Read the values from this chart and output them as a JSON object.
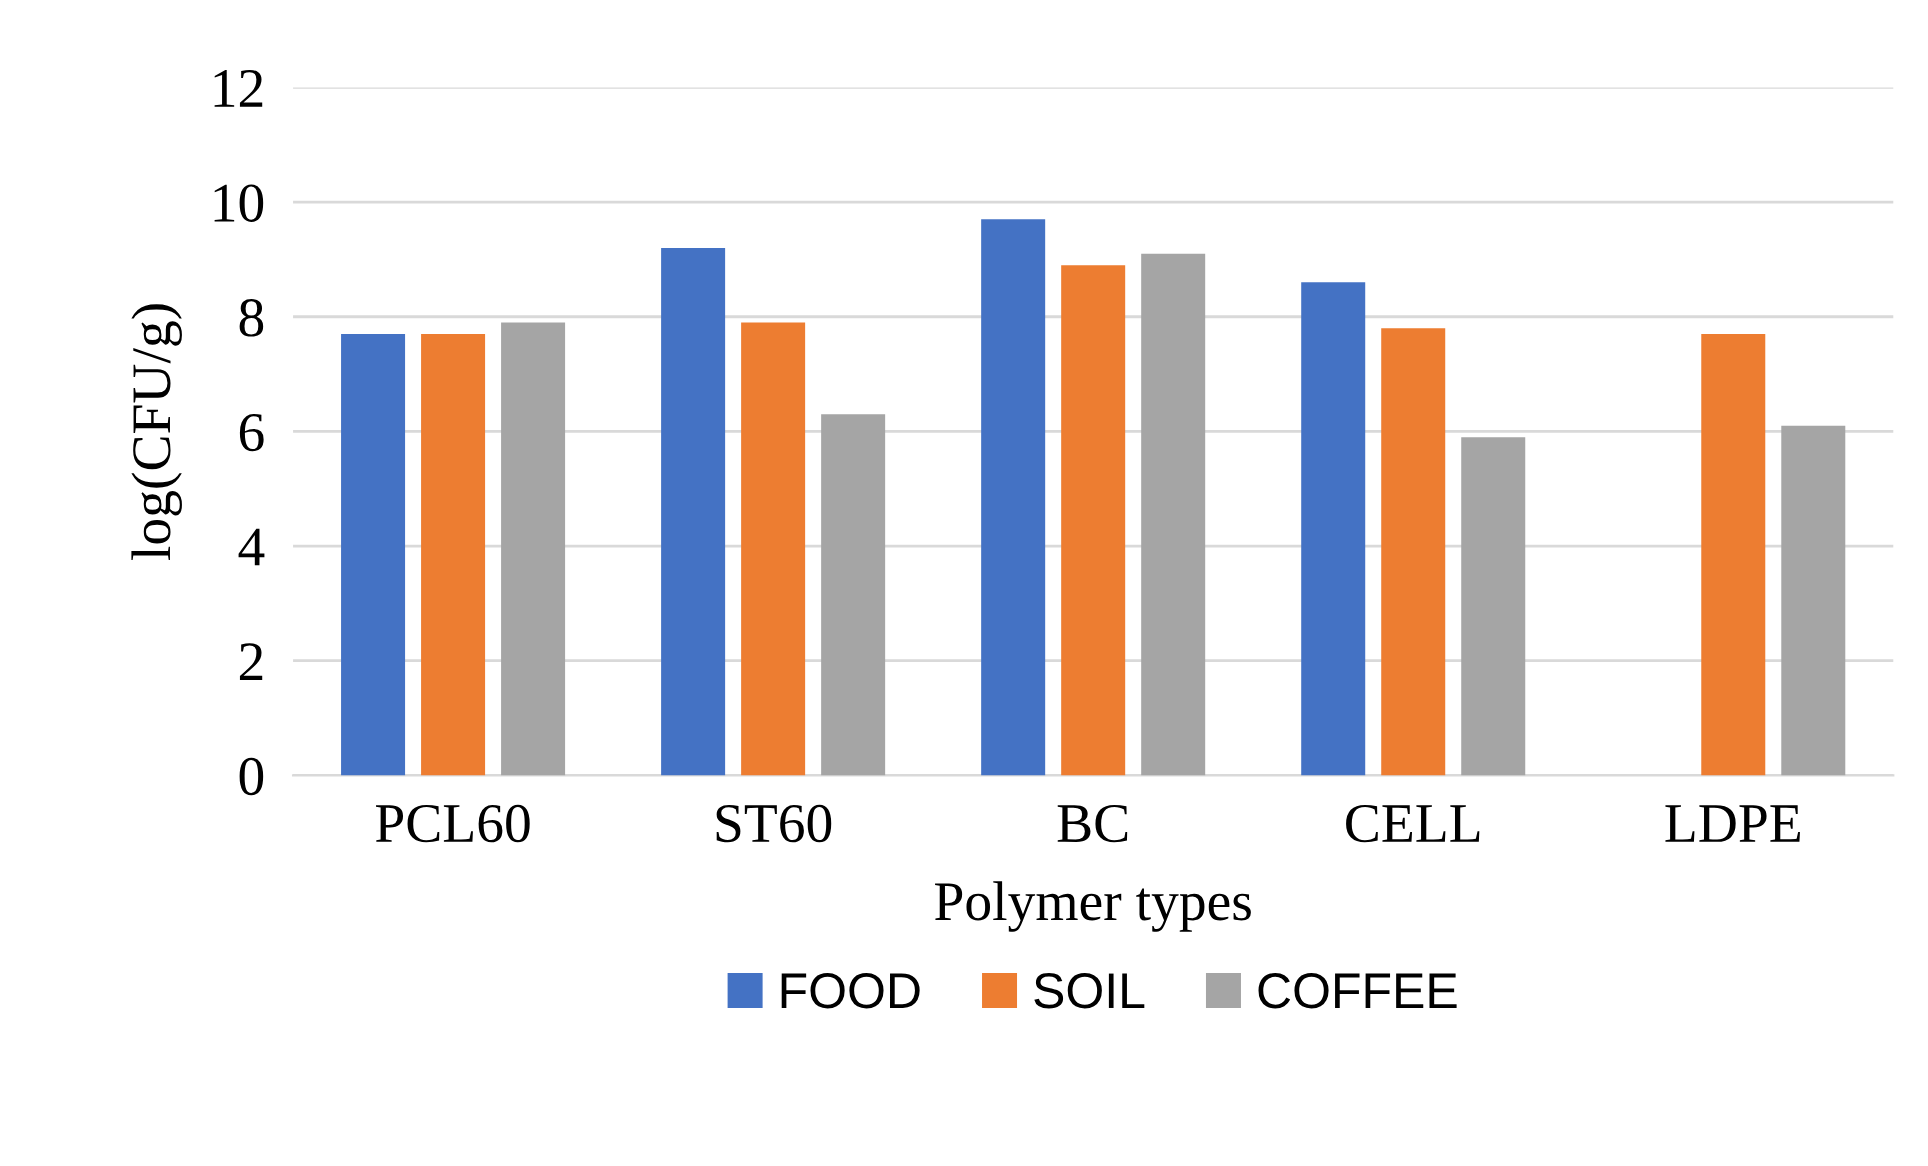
{
  "chart_data": {
    "type": "bar",
    "xlabel": "Polymer types",
    "ylabel": "log(CFU/g)",
    "categories": [
      "PCL60",
      "ST60",
      "BC",
      "CELL",
      "LDPE"
    ],
    "series": [
      {
        "name": "FOOD",
        "color": "#4472c4",
        "values": [
          7.7,
          9.2,
          9.7,
          8.6,
          null
        ]
      },
      {
        "name": "SOIL",
        "color": "#ed7d31",
        "values": [
          7.7,
          7.9,
          8.9,
          7.8,
          7.7
        ]
      },
      {
        "name": "COFFEE",
        "color": "#a5a5a5",
        "values": [
          7.9,
          6.3,
          9.1,
          5.9,
          6.1
        ]
      }
    ],
    "ylim": [
      0,
      12
    ],
    "yticks": [
      0,
      2,
      4,
      6,
      8,
      10,
      12
    ],
    "grid": "y",
    "legend": "bottom"
  }
}
